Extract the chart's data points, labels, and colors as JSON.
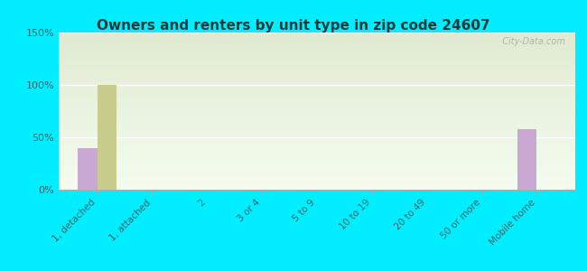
{
  "title": "Owners and renters by unit type in zip code 24607",
  "categories": [
    "1, detached",
    "1, attached",
    "2",
    "3 or 4",
    "5 to 9",
    "10 to 19",
    "20 to 49",
    "50 or more",
    "Mobile home"
  ],
  "owner_values": [
    40,
    0,
    0,
    0,
    0,
    0,
    0,
    0,
    58
  ],
  "renter_values": [
    100,
    0,
    0,
    0,
    0,
    0,
    0,
    0,
    0
  ],
  "owner_color": "#c9a8d4",
  "renter_color": "#c8cc8c",
  "background_outer": "#00eeff",
  "background_top": "#e8eed8",
  "background_bottom": "#f8faf0",
  "ylim": [
    0,
    150
  ],
  "yticks": [
    0,
    50,
    100,
    150
  ],
  "ytick_labels": [
    "0%",
    "50%",
    "100%",
    "150%"
  ],
  "bar_width": 0.35,
  "watermark": "  City-Data.com",
  "title_color": "#1a3a3a",
  "tick_label_color": "#336666"
}
